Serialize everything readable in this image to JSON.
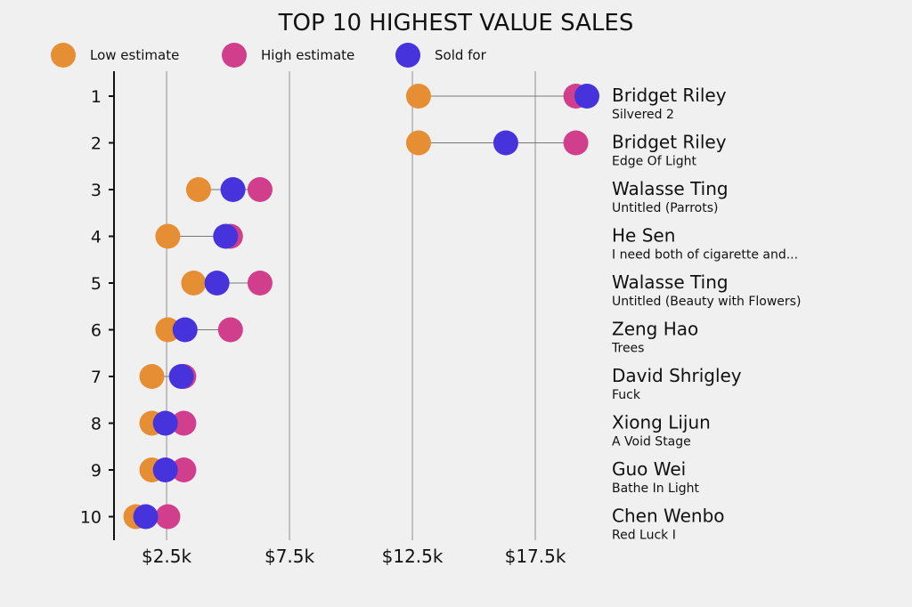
{
  "chart_data": {
    "type": "dot",
    "title": "TOP 10 HIGHEST VALUE SALES",
    "legend": [
      {
        "name": "Low estimate",
        "color": "#E68E33"
      },
      {
        "name": "High estimate",
        "color": "#D13E8C"
      },
      {
        "name": "Sold for",
        "color": "#4733DB"
      }
    ],
    "legend_placement": "top-left",
    "xlabel": "",
    "ylabel": "",
    "xlim": [
      0.36,
      19.6
    ],
    "x_ticks": [
      2.5,
      7.5,
      12.5,
      17.5
    ],
    "x_tick_labels": [
      "$2.5k",
      "$7.5k",
      "$12.5k",
      "$17.5k"
    ],
    "grid": "vertical",
    "units": "thousand USD",
    "rows": [
      {
        "rank": "1",
        "artist": "Bridget Riley",
        "title": "Silvered 2",
        "low": 12.75,
        "high": 19.15,
        "sold": 19.6
      },
      {
        "rank": "2",
        "artist": "Bridget Riley",
        "title": "Edge Of Light",
        "low": 12.75,
        "high": 19.15,
        "sold": 16.3
      },
      {
        "rank": "3",
        "artist": "Walasse Ting",
        "title": "Untitled (Parrots)",
        "low": 3.8,
        "high": 6.3,
        "sold": 5.2
      },
      {
        "rank": "4",
        "artist": "He Sen",
        "title": "I need both of cigarette and...",
        "low": 2.55,
        "high": 5.1,
        "sold": 4.9
      },
      {
        "rank": "5",
        "artist": "Walasse Ting",
        "title": "Untitled (Beauty with Flowers)",
        "low": 3.6,
        "high": 6.3,
        "sold": 4.55
      },
      {
        "rank": "6",
        "artist": "Zeng Hao",
        "title": "Trees",
        "low": 2.55,
        "high": 5.1,
        "sold": 3.25
      },
      {
        "rank": "7",
        "artist": "David Shrigley",
        "title": "Fuck",
        "low": 1.9,
        "high": 3.2,
        "sold": 3.1
      },
      {
        "rank": "8",
        "artist": "Xiong Lijun",
        "title": "A Void Stage",
        "low": 1.9,
        "high": 3.2,
        "sold": 2.45
      },
      {
        "rank": "9",
        "artist": "Guo Wei",
        "title": "Bathe In Light",
        "low": 1.9,
        "high": 3.2,
        "sold": 2.45
      },
      {
        "rank": "10",
        "artist": "Chen Wenbo",
        "title": "Red Luck I",
        "low": 1.25,
        "high": 2.55,
        "sold": 1.65
      }
    ]
  }
}
